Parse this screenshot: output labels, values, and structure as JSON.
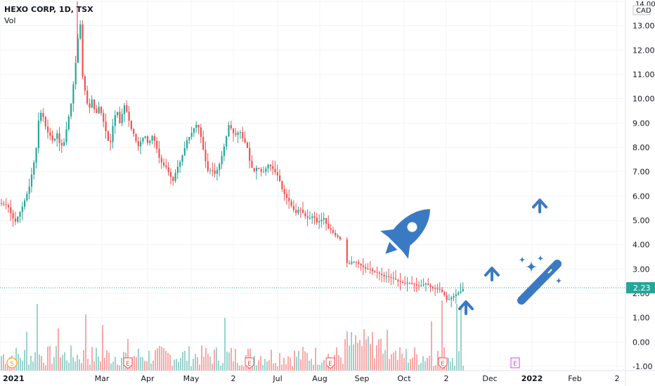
{
  "header": {
    "symbol_line": "HEXO CORP, 1D, TSX",
    "vol_label": "Vol"
  },
  "colors": {
    "up": "#26a69a",
    "down": "#ef5350",
    "up_vol": "#9bd3cc",
    "down_vol": "#f7a9a7",
    "price_line": "#26a69a",
    "grid": "#f0f3fa",
    "axis_text": "#131722",
    "icons": "#3a7ac2",
    "marker_orange": "#f7a21b",
    "marker_red": "#ef5350",
    "marker_magenta": "#e040fb"
  },
  "chart_data": {
    "type": "candlestick",
    "symbol": "HEXO CORP",
    "interval": "1D",
    "exchange": "TSX",
    "currency": "CAD",
    "last_price": "2.23",
    "y_ticks": [
      "14.00",
      "13.00",
      "12.00",
      "11.00",
      "10.00",
      "9.00",
      "8.00",
      "7.00",
      "6.00",
      "5.00",
      "4.00",
      "3.00",
      "2.00",
      "1.00",
      "0.00",
      "-1.00"
    ],
    "ylim": [
      -1,
      14
    ],
    "x_ticks": [
      "2021",
      "Mar",
      "Apr",
      "May",
      "2",
      "Jul",
      "Aug",
      "Sep",
      "Oct",
      "2",
      "Dec",
      "2022",
      "Feb",
      "2"
    ],
    "close_path": [
      [
        0,
        5.7
      ],
      [
        10,
        5.6
      ],
      [
        20,
        4.9
      ],
      [
        30,
        5.5
      ],
      [
        40,
        6.3
      ],
      [
        50,
        7.8
      ],
      [
        55,
        9.5
      ],
      [
        60,
        9.3
      ],
      [
        65,
        8.7
      ],
      [
        70,
        8.5
      ],
      [
        75,
        8.2
      ],
      [
        80,
        8.6
      ],
      [
        85,
        8.0
      ],
      [
        90,
        8.2
      ],
      [
        95,
        9.0
      ],
      [
        100,
        9.8
      ],
      [
        105,
        11.0
      ],
      [
        110,
        12.5
      ],
      [
        113,
        13.2
      ],
      [
        116,
        11.0
      ],
      [
        120,
        10.3
      ],
      [
        125,
        9.5
      ],
      [
        130,
        10.0
      ],
      [
        135,
        9.3
      ],
      [
        140,
        9.7
      ],
      [
        145,
        9.2
      ],
      [
        150,
        8.6
      ],
      [
        155,
        8.0
      ],
      [
        160,
        9.0
      ],
      [
        165,
        9.6
      ],
      [
        170,
        8.9
      ],
      [
        175,
        9.8
      ],
      [
        180,
        9.4
      ],
      [
        185,
        8.8
      ],
      [
        190,
        8.5
      ],
      [
        195,
        8.0
      ],
      [
        200,
        8.3
      ],
      [
        205,
        8.5
      ],
      [
        210,
        8.1
      ],
      [
        215,
        8.5
      ],
      [
        220,
        8.2
      ],
      [
        225,
        7.6
      ],
      [
        230,
        7.3
      ],
      [
        235,
        7.2
      ],
      [
        240,
        6.9
      ],
      [
        245,
        6.6
      ],
      [
        250,
        7.1
      ],
      [
        255,
        7.4
      ],
      [
        260,
        7.8
      ],
      [
        265,
        8.3
      ],
      [
        270,
        8.5
      ],
      [
        275,
        8.8
      ],
      [
        280,
        9.0
      ],
      [
        285,
        8.4
      ],
      [
        290,
        7.6
      ],
      [
        295,
        7.0
      ],
      [
        300,
        7.1
      ],
      [
        305,
        6.9
      ],
      [
        310,
        7.2
      ],
      [
        315,
        7.7
      ],
      [
        320,
        8.3
      ],
      [
        325,
        9.0
      ],
      [
        330,
        8.6
      ],
      [
        335,
        8.5
      ],
      [
        340,
        8.7
      ],
      [
        345,
        8.3
      ],
      [
        350,
        8.1
      ],
      [
        355,
        7.3
      ],
      [
        360,
        7.0
      ],
      [
        365,
        7.2
      ],
      [
        370,
        7.0
      ],
      [
        375,
        7.0
      ],
      [
        380,
        7.3
      ],
      [
        385,
        7.2
      ],
      [
        390,
        7.0
      ],
      [
        395,
        6.8
      ],
      [
        400,
        6.3
      ],
      [
        405,
        6.0
      ],
      [
        410,
        5.8
      ],
      [
        415,
        5.5
      ],
      [
        420,
        5.3
      ],
      [
        425,
        5.5
      ],
      [
        430,
        5.3
      ],
      [
        435,
        5.1
      ],
      [
        440,
        5.1
      ],
      [
        445,
        5.2
      ],
      [
        450,
        4.9
      ],
      [
        455,
        5.0
      ],
      [
        460,
        5.1
      ],
      [
        465,
        4.7
      ],
      [
        470,
        4.6
      ],
      [
        475,
        4.4
      ],
      [
        480,
        4.3
      ],
      [
        487,
        4.1
      ],
      [
        490,
        3.3
      ],
      [
        495,
        3.2
      ],
      [
        500,
        3.3
      ],
      [
        505,
        3.3
      ],
      [
        510,
        3.2
      ],
      [
        515,
        3.1
      ],
      [
        520,
        3.0
      ],
      [
        525,
        3.0
      ],
      [
        530,
        2.9
      ],
      [
        535,
        2.85
      ],
      [
        540,
        2.8
      ],
      [
        545,
        2.7
      ],
      [
        550,
        2.7
      ],
      [
        555,
        2.65
      ],
      [
        560,
        2.6
      ],
      [
        565,
        2.5
      ],
      [
        570,
        2.45
      ],
      [
        575,
        2.4
      ],
      [
        580,
        2.45
      ],
      [
        585,
        2.4
      ],
      [
        590,
        2.35
      ],
      [
        595,
        2.3
      ],
      [
        600,
        2.35
      ],
      [
        605,
        2.4
      ],
      [
        610,
        2.3
      ],
      [
        615,
        2.2
      ],
      [
        620,
        2.2
      ],
      [
        625,
        2.15
      ],
      [
        630,
        2.0
      ],
      [
        635,
        1.7
      ],
      [
        640,
        1.8
      ],
      [
        645,
        1.9
      ],
      [
        650,
        2.0
      ],
      [
        655,
        2.1
      ],
      [
        660,
        2.23
      ]
    ],
    "volume_note": "volume pane with big spikes near Feb 2021, late Aug and mid Nov",
    "event_markers": [
      {
        "label": "S",
        "x_hint": "early Jan"
      },
      {
        "label": "E",
        "x_hint": "mid Mar"
      },
      {
        "label": "E",
        "x_hint": "early Jun"
      },
      {
        "label": "E",
        "x_hint": "early Sep"
      },
      {
        "label": "E",
        "x_hint": "mid Nov"
      },
      {
        "label": "E",
        "x_hint": "mid Dec"
      }
    ],
    "grid": true,
    "annotations": [
      "rocket-icon",
      "arrow-up-icon x4",
      "magic-wand-icon"
    ]
  }
}
